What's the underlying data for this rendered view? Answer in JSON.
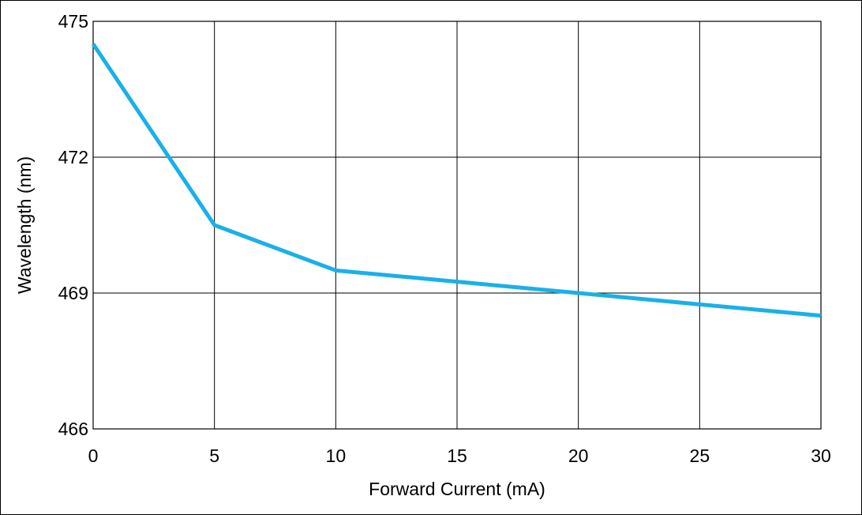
{
  "chart_data": {
    "type": "line",
    "title": "",
    "xlabel": "Forward Current (mA)",
    "ylabel": "Wavelength (nm)",
    "xlim": [
      0,
      30
    ],
    "ylim": [
      466,
      475
    ],
    "x_ticks": [
      0,
      5,
      10,
      15,
      20,
      25,
      30
    ],
    "x_tick_labels": [
      "0",
      "5",
      "10",
      "15",
      "20",
      "25",
      "30"
    ],
    "y_ticks": [
      466,
      469,
      472,
      475
    ],
    "y_tick_labels": [
      "466",
      "469",
      "472",
      "475"
    ],
    "grid": true,
    "legend": "none",
    "series": [
      {
        "color": "#1ab0e8",
        "x": [
          0,
          5,
          10,
          15,
          20,
          25,
          30
        ],
        "y": [
          474.5,
          470.5,
          469.5,
          469.25,
          469.0,
          468.75,
          468.5
        ]
      }
    ]
  }
}
